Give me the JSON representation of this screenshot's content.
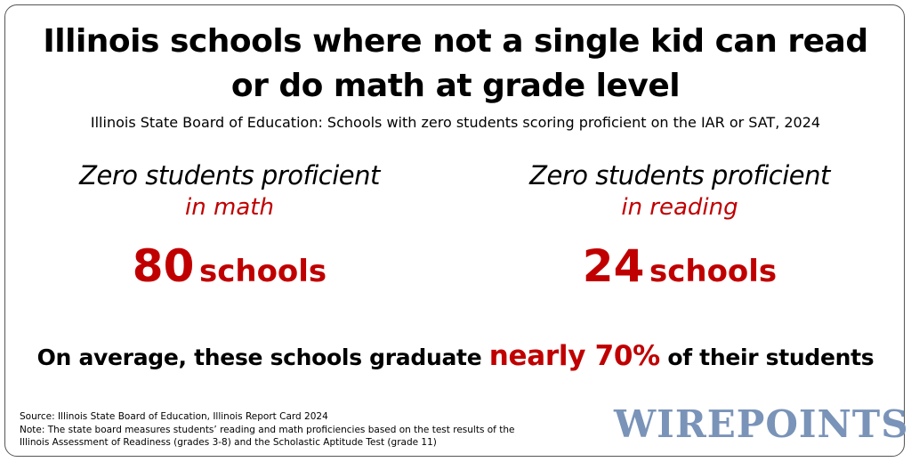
{
  "header": {
    "title_lines": [
      "Illinois schools where not a single kid can read",
      "or do math at grade level"
    ],
    "subtitle": "Illinois State Board of Education: Schools with zero students scoring proficient on the IAR or SAT, 2024"
  },
  "stats": [
    {
      "label": "Zero students proficient",
      "sublabel": "in math",
      "number": 80,
      "unit": "schools"
    },
    {
      "label": "Zero students proficient",
      "sublabel": "in reading",
      "number": 24,
      "unit": "schools"
    }
  ],
  "graduation": {
    "before": "On average, these schools graduate",
    "highlight": "nearly 70%",
    "after": "of their students"
  },
  "footer": {
    "source": "Source: Illinois State Board of Education, Illinois Report Card 2024",
    "note": "Note: The state board measures students’ reading and math proficiencies based on the test results of the Illinois Assessment of Readiness (grades 3-8) and the Scholastic Aptitude Test (grade 11)",
    "logo": "WIREPOINTS"
  }
}
